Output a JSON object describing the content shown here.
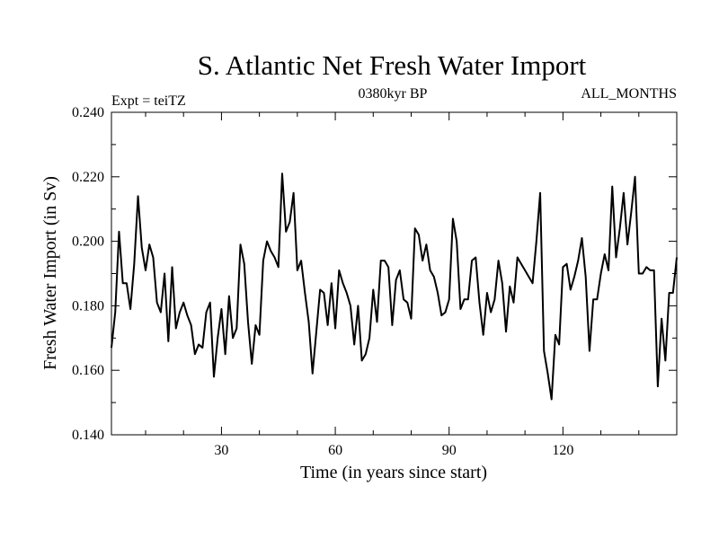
{
  "chart_data": {
    "type": "line",
    "title": "S. Atlantic Net Fresh Water Import",
    "subtitle_left": "Expt = teiTZ",
    "subtitle_center": "0380kyr BP",
    "subtitle_right": "ALL_MONTHS",
    "xlabel": "Time (in years since start)",
    "ylabel": "Fresh Water Import (in Sv)",
    "xlim": [
      1,
      150
    ],
    "ylim": [
      0.14,
      0.24
    ],
    "xticks": [
      30,
      60,
      90,
      120
    ],
    "xtick_labels": [
      "30",
      "60",
      "90",
      "120"
    ],
    "yticks": [
      0.14,
      0.16,
      0.18,
      0.2,
      0.22,
      0.24
    ],
    "ytick_labels": [
      "0.140",
      "0.160",
      "0.180",
      "0.200",
      "0.220",
      "0.240"
    ],
    "series": [
      {
        "name": "Fresh Water Import",
        "x": [
          1,
          2,
          3,
          4,
          5,
          6,
          7,
          8,
          9,
          10,
          11,
          12,
          13,
          14,
          15,
          16,
          17,
          18,
          19,
          20,
          21,
          22,
          23,
          24,
          25,
          26,
          27,
          28,
          29,
          30,
          31,
          32,
          33,
          34,
          35,
          36,
          37,
          38,
          39,
          40,
          41,
          42,
          43,
          44,
          45,
          46,
          47,
          48,
          49,
          50,
          51,
          52,
          53,
          54,
          55,
          56,
          57,
          58,
          59,
          60,
          61,
          62,
          63,
          64,
          65,
          66,
          67,
          68,
          69,
          70,
          71,
          72,
          73,
          74,
          75,
          76,
          77,
          78,
          79,
          80,
          81,
          82,
          83,
          84,
          85,
          86,
          87,
          88,
          89,
          90,
          91,
          92,
          93,
          94,
          95,
          96,
          97,
          98,
          99,
          100,
          101,
          102,
          103,
          104,
          105,
          106,
          107,
          108,
          109,
          110,
          111,
          112,
          113,
          114,
          115,
          116,
          117,
          118,
          119,
          120,
          121,
          122,
          123,
          124,
          125,
          126,
          127,
          128,
          129,
          130,
          131,
          132,
          133,
          134,
          135,
          136,
          137,
          138,
          139,
          140,
          141,
          142,
          143,
          144,
          145,
          146,
          147,
          148,
          149,
          150
        ],
        "values": [
          0.167,
          0.178,
          0.203,
          0.187,
          0.187,
          0.179,
          0.193,
          0.214,
          0.198,
          0.191,
          0.199,
          0.195,
          0.181,
          0.178,
          0.19,
          0.169,
          0.192,
          0.173,
          0.178,
          0.181,
          0.177,
          0.174,
          0.165,
          0.168,
          0.167,
          0.178,
          0.181,
          0.158,
          0.17,
          0.179,
          0.165,
          0.183,
          0.17,
          0.173,
          0.199,
          0.193,
          0.175,
          0.162,
          0.174,
          0.171,
          0.194,
          0.2,
          0.197,
          0.195,
          0.192,
          0.221,
          0.203,
          0.206,
          0.215,
          0.191,
          0.194,
          0.184,
          0.175,
          0.159,
          0.172,
          0.185,
          0.184,
          0.174,
          0.187,
          0.173,
          0.191,
          0.187,
          0.184,
          0.18,
          0.168,
          0.18,
          0.163,
          0.165,
          0.17,
          0.185,
          0.175,
          0.194,
          0.194,
          0.192,
          0.174,
          0.188,
          0.191,
          0.182,
          0.181,
          0.176,
          0.204,
          0.202,
          0.194,
          0.199,
          0.191,
          0.189,
          0.184,
          0.177,
          0.178,
          0.182,
          0.207,
          0.2,
          0.179,
          0.182,
          0.182,
          0.194,
          0.195,
          0.181,
          0.171,
          0.184,
          0.178,
          0.182,
          0.194,
          0.187,
          0.172,
          0.186,
          0.181,
          0.195,
          0.193,
          0.191,
          0.189,
          0.187,
          0.2,
          0.215,
          0.166,
          0.159,
          0.151,
          0.171,
          0.168,
          0.192,
          0.193,
          0.185,
          0.189,
          0.194,
          0.201,
          0.189,
          0.166,
          0.182,
          0.182,
          0.19,
          0.196,
          0.191,
          0.217,
          0.195,
          0.204,
          0.215,
          0.199,
          0.209,
          0.22,
          0.19,
          0.19,
          0.192,
          0.191,
          0.191,
          0.155,
          0.176,
          0.163,
          0.184,
          0.184,
          0.195
        ]
      }
    ]
  }
}
